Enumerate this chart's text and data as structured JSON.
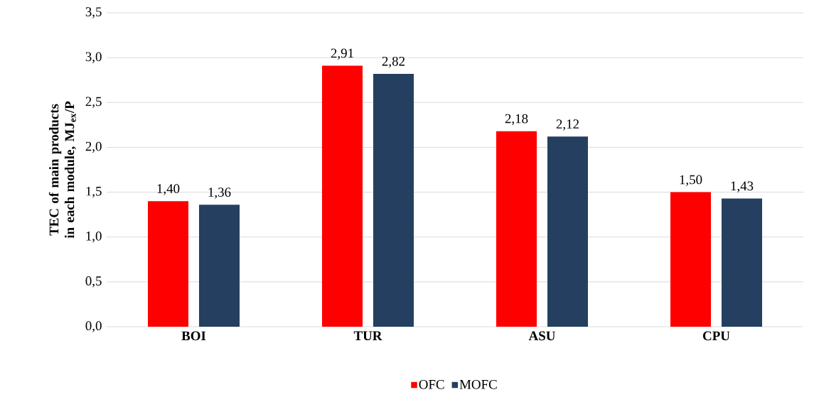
{
  "chart_data": {
    "type": "bar",
    "ylabel": "TEC of main products in each module, MJ$_{ex}$/P",
    "categories": [
      "BOI",
      "TUR",
      "ASU",
      "CPU"
    ],
    "series": [
      {
        "name": "OFC",
        "color": "#ff0000",
        "values": [
          1.4,
          2.91,
          2.18,
          1.5
        ],
        "value_labels": [
          "1,40",
          "2,91",
          "2,18",
          "1,50"
        ]
      },
      {
        "name": "MOFC",
        "color": "#243f60",
        "values": [
          1.36,
          2.82,
          2.12,
          1.43
        ],
        "value_labels": [
          "1,36",
          "2,82",
          "2,12",
          "1,43"
        ]
      }
    ],
    "ylim": [
      0,
      3.5
    ],
    "yticks": [
      {
        "value": 0,
        "label": "0,0"
      },
      {
        "value": 0.5,
        "label": "0,5"
      },
      {
        "value": 1,
        "label": "1,0"
      },
      {
        "value": 1.5,
        "label": "1,5"
      },
      {
        "value": 2,
        "label": "2,0"
      },
      {
        "value": 2.5,
        "label": "2,5"
      },
      {
        "value": 3,
        "label": "3,0"
      },
      {
        "value": 3.5,
        "label": "3,5"
      }
    ],
    "grid": "y",
    "legend": "bottom"
  }
}
